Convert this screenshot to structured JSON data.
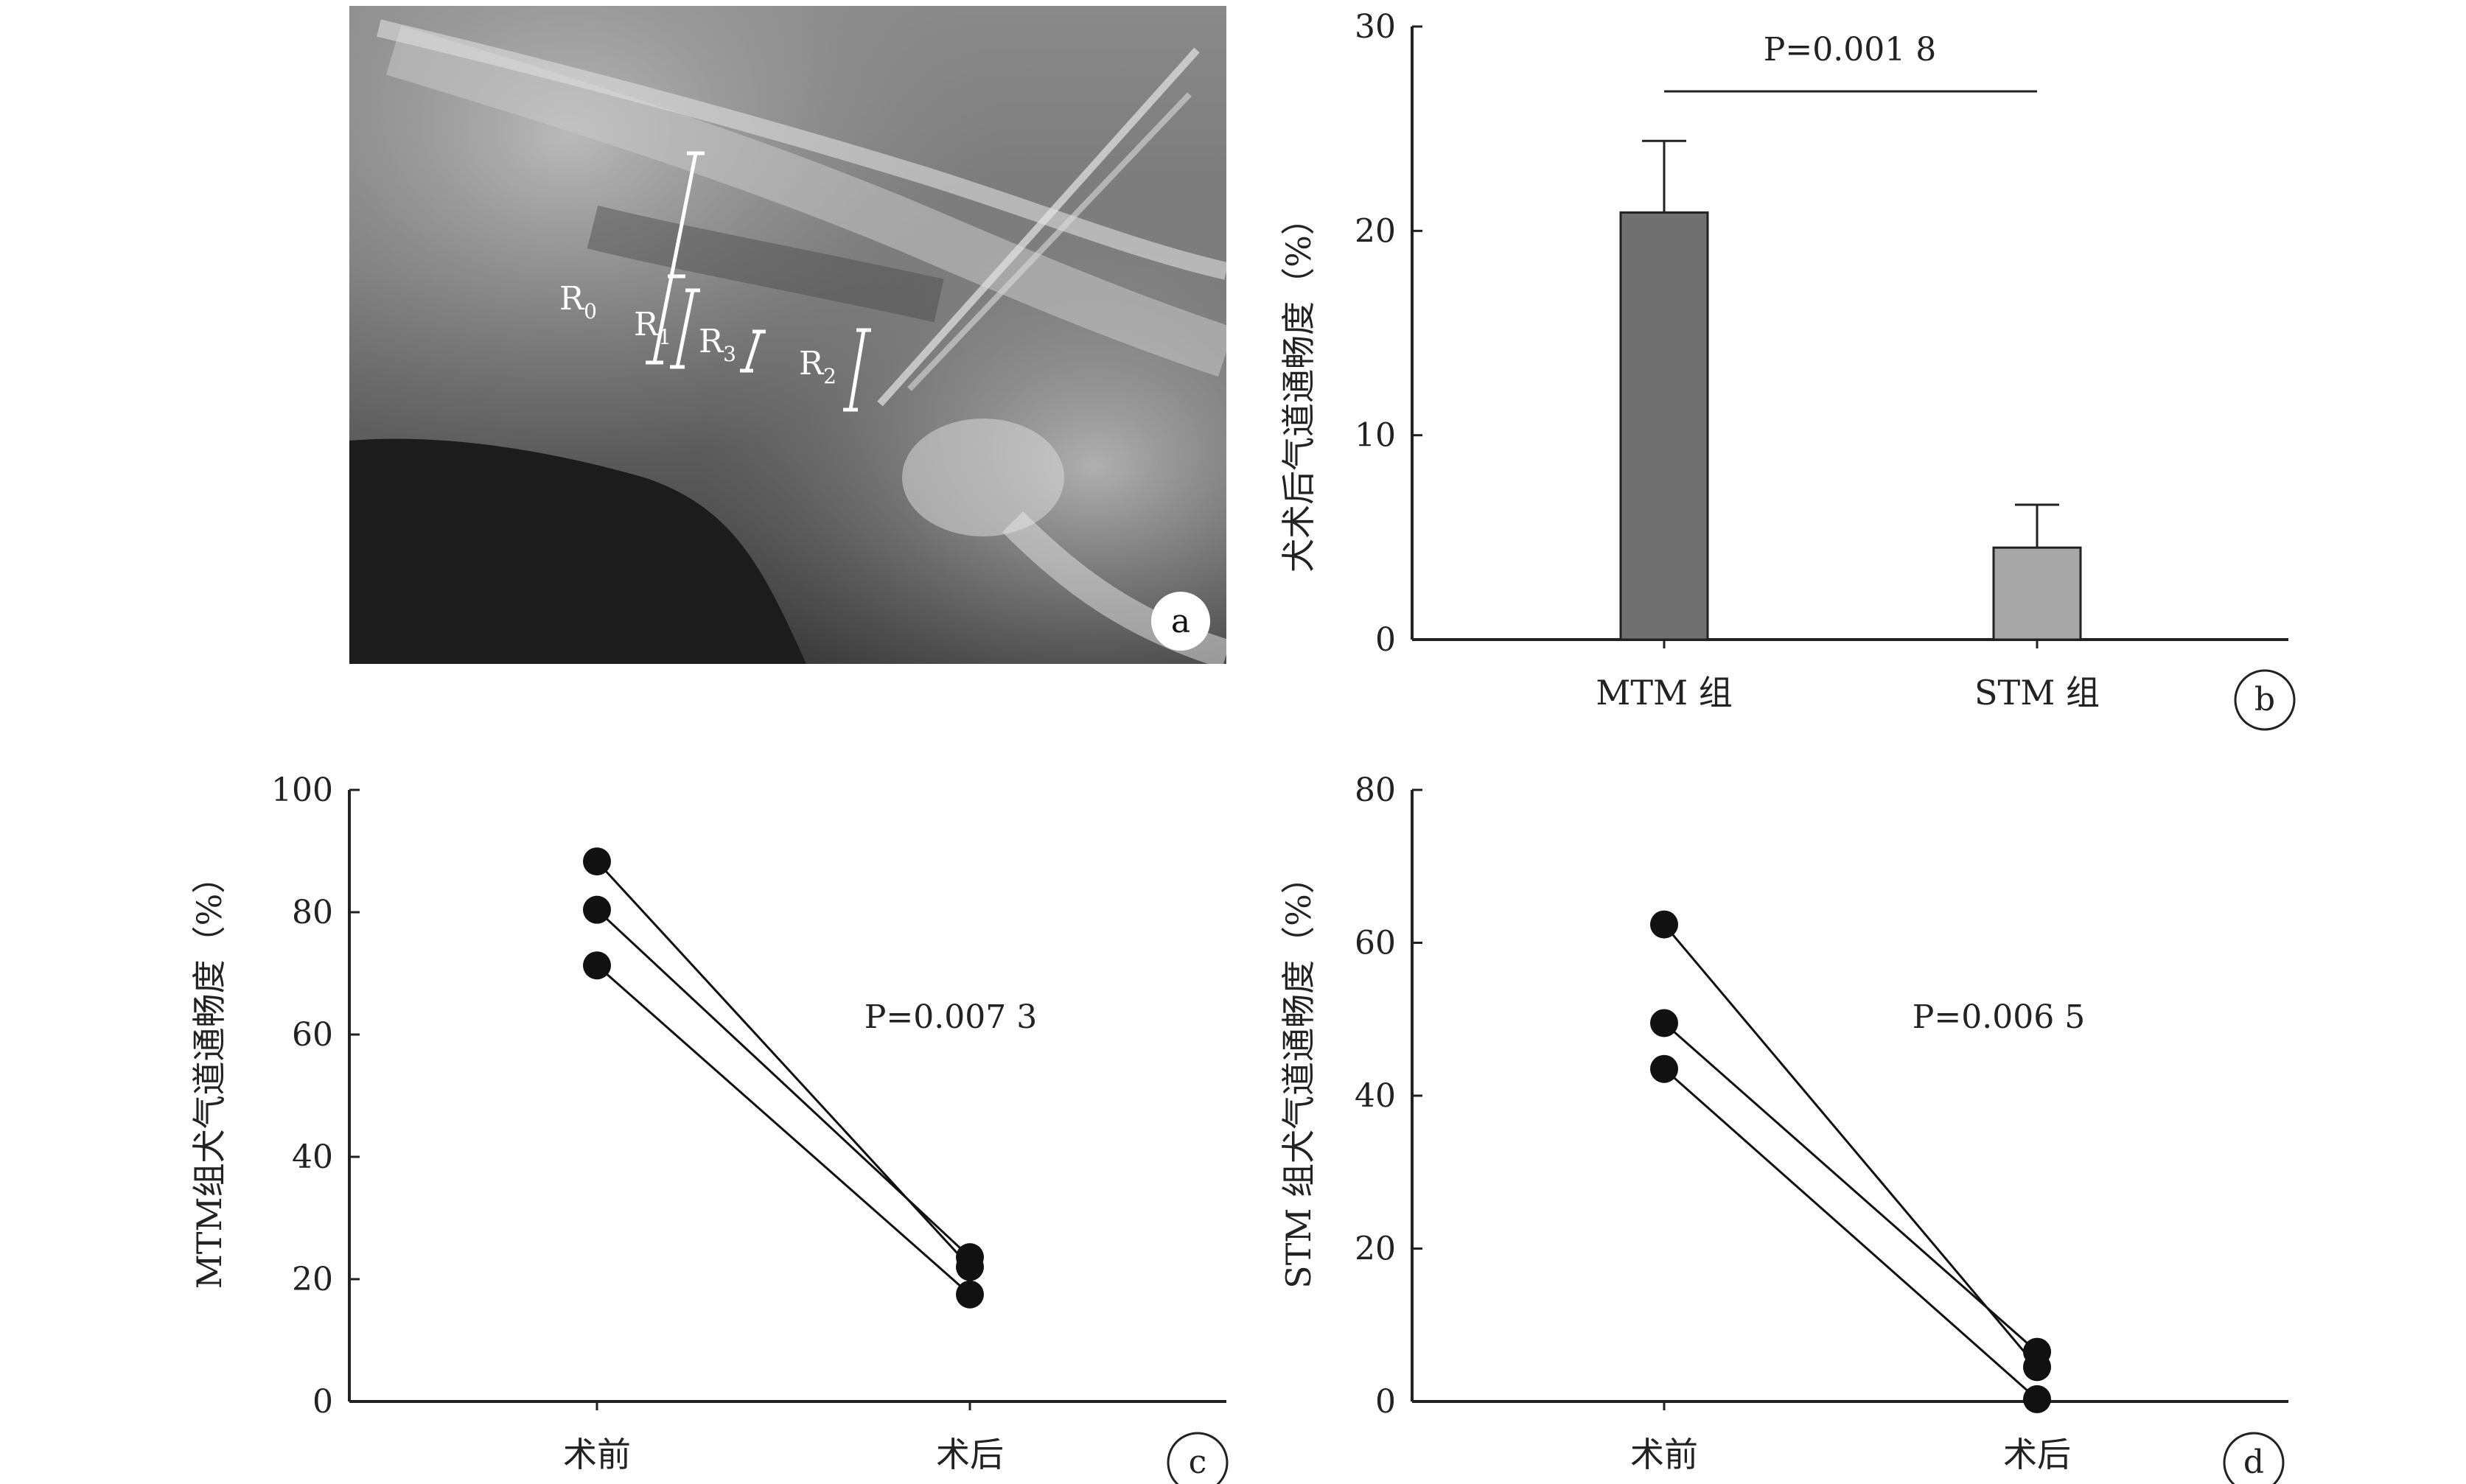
{
  "panels": {
    "a": {
      "label": "a",
      "segment_labels": [
        {
          "main": "R",
          "sub": "0"
        },
        {
          "main": "R",
          "sub": "1"
        },
        {
          "main": "R",
          "sub": "3"
        },
        {
          "main": "R",
          "sub": "2"
        }
      ]
    },
    "b": {
      "label": "b",
      "p_value": "P=0.001 8"
    },
    "c": {
      "label": "c",
      "p_value": "P=0.007 3"
    },
    "d": {
      "label": "d",
      "p_value": "P=0.006 5"
    }
  },
  "chart_data": [
    {
      "id": "b",
      "type": "bar",
      "categories": [
        "MTM 组",
        "STM 组"
      ],
      "values": [
        20.9,
        4.5
      ],
      "errors": [
        3.5,
        2.1
      ],
      "ylabel": "犬术后气道通畅度（%）",
      "ylim": [
        0,
        30
      ],
      "yticks": [
        "0",
        "10",
        "20",
        "30"
      ],
      "annotation": "P=0.001 8",
      "colors": [
        "#707070",
        "#a8a8a8"
      ]
    },
    {
      "id": "c",
      "type": "line",
      "categories": [
        "术前",
        "术后"
      ],
      "series": [
        {
          "values": [
            88.3,
            22.0
          ]
        },
        {
          "values": [
            80.4,
            23.6
          ]
        },
        {
          "values": [
            71.3,
            17.5
          ]
        }
      ],
      "ylabel": "MTM组犬气道通畅度（%）",
      "ylim": [
        0,
        100
      ],
      "yticks": [
        "0",
        "20",
        "40",
        "60",
        "80",
        "100"
      ],
      "annotation": "P=0.007 3"
    },
    {
      "id": "d",
      "type": "line",
      "categories": [
        "术前",
        "术后"
      ],
      "series": [
        {
          "values": [
            62.4,
            4.5
          ]
        },
        {
          "values": [
            49.5,
            6.5
          ]
        },
        {
          "values": [
            43.5,
            0.3
          ]
        }
      ],
      "ylabel": "STM 组犬气道通畅度（%）",
      "ylim": [
        0,
        80
      ],
      "yticks": [
        "0",
        "20",
        "40",
        "60",
        "80"
      ],
      "annotation": "P=0.006 5"
    }
  ]
}
